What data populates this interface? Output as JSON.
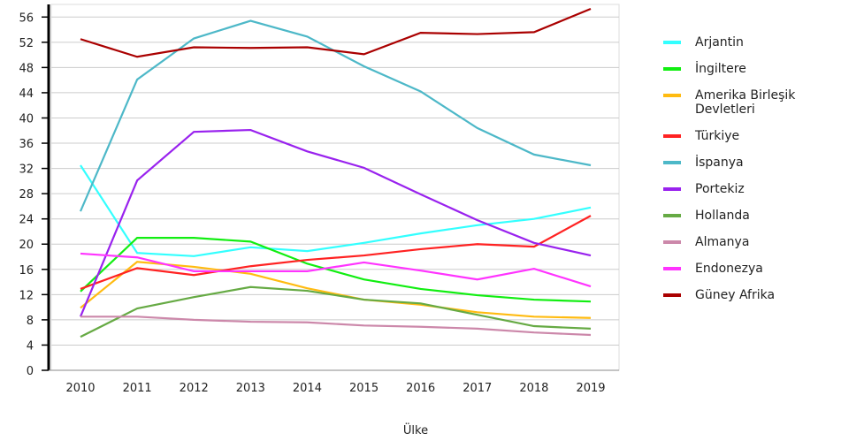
{
  "chart_data": {
    "type": "line",
    "x_label": "Ülke",
    "categories": [
      "2010",
      "2011",
      "2012",
      "2013",
      "2014",
      "2015",
      "2016",
      "2017",
      "2018",
      "2019"
    ],
    "ylim": [
      0,
      58
    ],
    "yticks": [
      0,
      4,
      8,
      12,
      16,
      20,
      24,
      28,
      32,
      36,
      40,
      44,
      48,
      52,
      56
    ],
    "grid": true,
    "legend": "right",
    "series": [
      {
        "name": "Arjantin",
        "color": "#33ffff",
        "values": [
          32.5,
          18.6,
          18.1,
          19.5,
          18.9,
          20.2,
          21.7,
          23,
          24,
          25.8
        ]
      },
      {
        "name": "İngiltere",
        "color": "#11ee11",
        "values": [
          12.5,
          21,
          21,
          20.4,
          16.9,
          14.4,
          12.9,
          11.9,
          11.2,
          10.9
        ]
      },
      {
        "name": "Amerika Birleşik Devletleri",
        "color": "#ffbb11",
        "values": [
          9.9,
          17.2,
          16.4,
          15.3,
          13,
          11.2,
          10.4,
          9.2,
          8.5,
          8.3
        ]
      },
      {
        "name": "Türkiye",
        "color": "#ff2222",
        "values": [
          12.9,
          16.2,
          15.1,
          16.5,
          17.5,
          18.2,
          19.2,
          20,
          19.6,
          24.5
        ]
      },
      {
        "name": "İspanya",
        "color": "#4db8c8",
        "values": [
          25.2,
          46.1,
          52.6,
          55.4,
          52.9,
          48.2,
          44.2,
          38.4,
          34.2,
          32.5
        ]
      },
      {
        "name": "Portekiz",
        "color": "#9922ee",
        "values": [
          8.5,
          30.1,
          37.8,
          38.1,
          34.7,
          32.1,
          27.9,
          23.8,
          20.2,
          18.2
        ]
      },
      {
        "name": "Hollanda",
        "color": "#66aa44",
        "values": [
          5.3,
          9.8,
          11.6,
          13.2,
          12.6,
          11.2,
          10.6,
          8.8,
          7,
          6.6
        ]
      },
      {
        "name": "Almanya",
        "color": "#cc88aa",
        "values": [
          8.5,
          8.5,
          8,
          7.7,
          7.6,
          7.1,
          6.9,
          6.6,
          6,
          5.6
        ]
      },
      {
        "name": "Endonezya",
        "color": "#ff33ff",
        "values": [
          18.5,
          17.9,
          15.7,
          15.7,
          15.7,
          17.1,
          15.8,
          14.4,
          16.1,
          13.3
        ]
      },
      {
        "name": "Güney Afrika",
        "color": "#aa0000",
        "values": [
          52.5,
          49.7,
          51.2,
          51.1,
          51.2,
          50.1,
          53.5,
          53.3,
          53.6,
          57.3
        ]
      }
    ]
  }
}
